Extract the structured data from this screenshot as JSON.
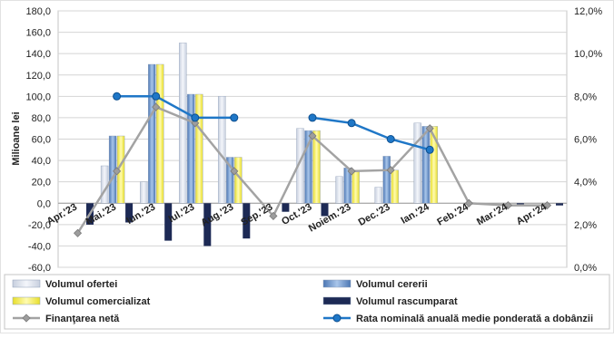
{
  "chart_data": {
    "type": "bar",
    "title": "",
    "ylabel": "Milioane lei",
    "ylim": [
      -60,
      180
    ],
    "y_ticks": [
      "180,0",
      "160,0",
      "140,0",
      "120,0",
      "100,0",
      "80,0",
      "60,0",
      "40,0",
      "20,0",
      "0,0",
      "-20,0",
      "-40,0",
      "-60,0"
    ],
    "y2lim": [
      0,
      12
    ],
    "y2_ticks": [
      "12,0%",
      "10,0%",
      "8,0%",
      "6,0%",
      "4,0%",
      "2,0%",
      "0,0%"
    ],
    "categories": [
      "Apr.'23",
      "Mai.'23",
      "Iun.'23",
      "Iul.'23",
      "Aug.'23",
      "Sep.'23",
      "Oct.'23",
      "Noiem.'23",
      "Dec.'23",
      "Ian.'24",
      "Feb.'24",
      "Mar.'24",
      "Apr.'24"
    ],
    "series": [
      {
        "name": "Volumul ofertei",
        "type": "bar",
        "axis": "left",
        "color": "#dfe4ee",
        "values": [
          0,
          35,
          20,
          150,
          100,
          0,
          70,
          25,
          15,
          75,
          0,
          0,
          0
        ]
      },
      {
        "name": "Volumul cererii",
        "type": "bar",
        "axis": "left",
        "color": "#6f98cc",
        "values": [
          0,
          63,
          130,
          102,
          43,
          0,
          68,
          33,
          44,
          72,
          0,
          0,
          0
        ]
      },
      {
        "name": "Volumul comercializat",
        "type": "bar",
        "axis": "left",
        "color": "#f6f06a",
        "values": [
          0,
          63,
          130,
          102,
          43,
          0,
          68,
          31,
          31,
          72,
          0,
          0,
          0
        ]
      },
      {
        "name": "Volumul rascumparat",
        "type": "bar",
        "axis": "left",
        "color": "#1d2a55",
        "values": [
          -20,
          -18,
          -35,
          -40,
          -33,
          -8,
          -12,
          0,
          0,
          0,
          0,
          -2,
          -2
        ]
      },
      {
        "name": "Finanţarea netă",
        "type": "line",
        "axis": "left",
        "color": "#a3a3a3",
        "values": [
          -28,
          30,
          90,
          75,
          30,
          -12,
          63,
          30,
          31,
          70,
          0,
          -2,
          -2
        ]
      },
      {
        "name": "Rata nominală anuală medie ponderată a dobânzii",
        "type": "line",
        "axis": "right",
        "color": "#1f77c7",
        "values": [
          null,
          8.0,
          8.0,
          7.0,
          7.0,
          null,
          7.0,
          6.75,
          6.0,
          5.5,
          null,
          null,
          null
        ]
      }
    ],
    "legend": "bottom"
  }
}
